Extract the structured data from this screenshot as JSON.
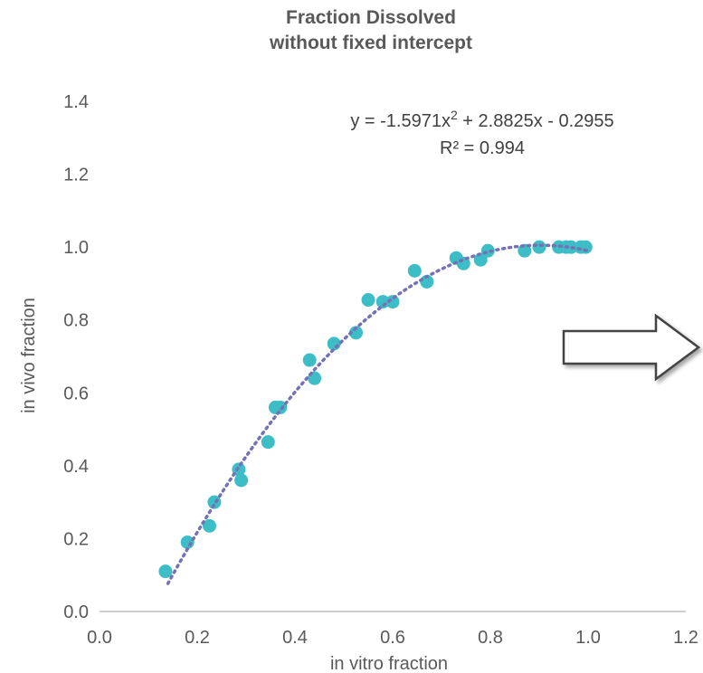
{
  "chart_data": {
    "type": "scatter",
    "title": "Fraction Dissolved",
    "subtitle": "without fixed intercept",
    "xlabel": "in vitro fraction",
    "ylabel": "in vivo fraction",
    "xlim": [
      0,
      1.2
    ],
    "ylim": [
      0,
      1.4
    ],
    "xticks": [
      "0.0",
      "0.2",
      "0.4",
      "0.6",
      "0.8",
      "1.0",
      "1.2"
    ],
    "yticks": [
      "0.0",
      "0.2",
      "0.4",
      "0.6",
      "0.8",
      "1.0",
      "1.2",
      "1.4"
    ],
    "grid": false,
    "marker_color": "#3dbdc6",
    "trendline_color": "#7472b5",
    "trendline": {
      "type": "polynomial",
      "order": 2,
      "coefficients": [
        -1.5971,
        2.8825,
        -0.2955
      ],
      "x_range": [
        0.14,
        1.0
      ],
      "equation": "y = -1.5971x",
      "equation_sup": "2",
      "equation_rest": " + 2.8825x - 0.2955",
      "r_squared": "R² = 0.994"
    },
    "series": [
      {
        "points": [
          [
            0.135,
            0.11
          ],
          [
            0.18,
            0.19
          ],
          [
            0.225,
            0.235
          ],
          [
            0.235,
            0.3
          ],
          [
            0.285,
            0.39
          ],
          [
            0.29,
            0.36
          ],
          [
            0.345,
            0.465
          ],
          [
            0.36,
            0.56
          ],
          [
            0.37,
            0.56
          ],
          [
            0.43,
            0.69
          ],
          [
            0.44,
            0.64
          ],
          [
            0.48,
            0.735
          ],
          [
            0.525,
            0.765
          ],
          [
            0.55,
            0.855
          ],
          [
            0.58,
            0.85
          ],
          [
            0.6,
            0.85
          ],
          [
            0.645,
            0.935
          ],
          [
            0.67,
            0.905
          ],
          [
            0.73,
            0.97
          ],
          [
            0.745,
            0.955
          ],
          [
            0.78,
            0.965
          ],
          [
            0.795,
            0.99
          ],
          [
            0.87,
            0.99
          ],
          [
            0.9,
            1.0
          ],
          [
            0.94,
            1.0
          ],
          [
            0.955,
            1.0
          ],
          [
            0.965,
            1.0
          ],
          [
            0.985,
            1.0
          ],
          [
            0.995,
            1.0
          ]
        ]
      }
    ]
  },
  "annotation": {
    "arrow": "right-arrow-icon"
  }
}
